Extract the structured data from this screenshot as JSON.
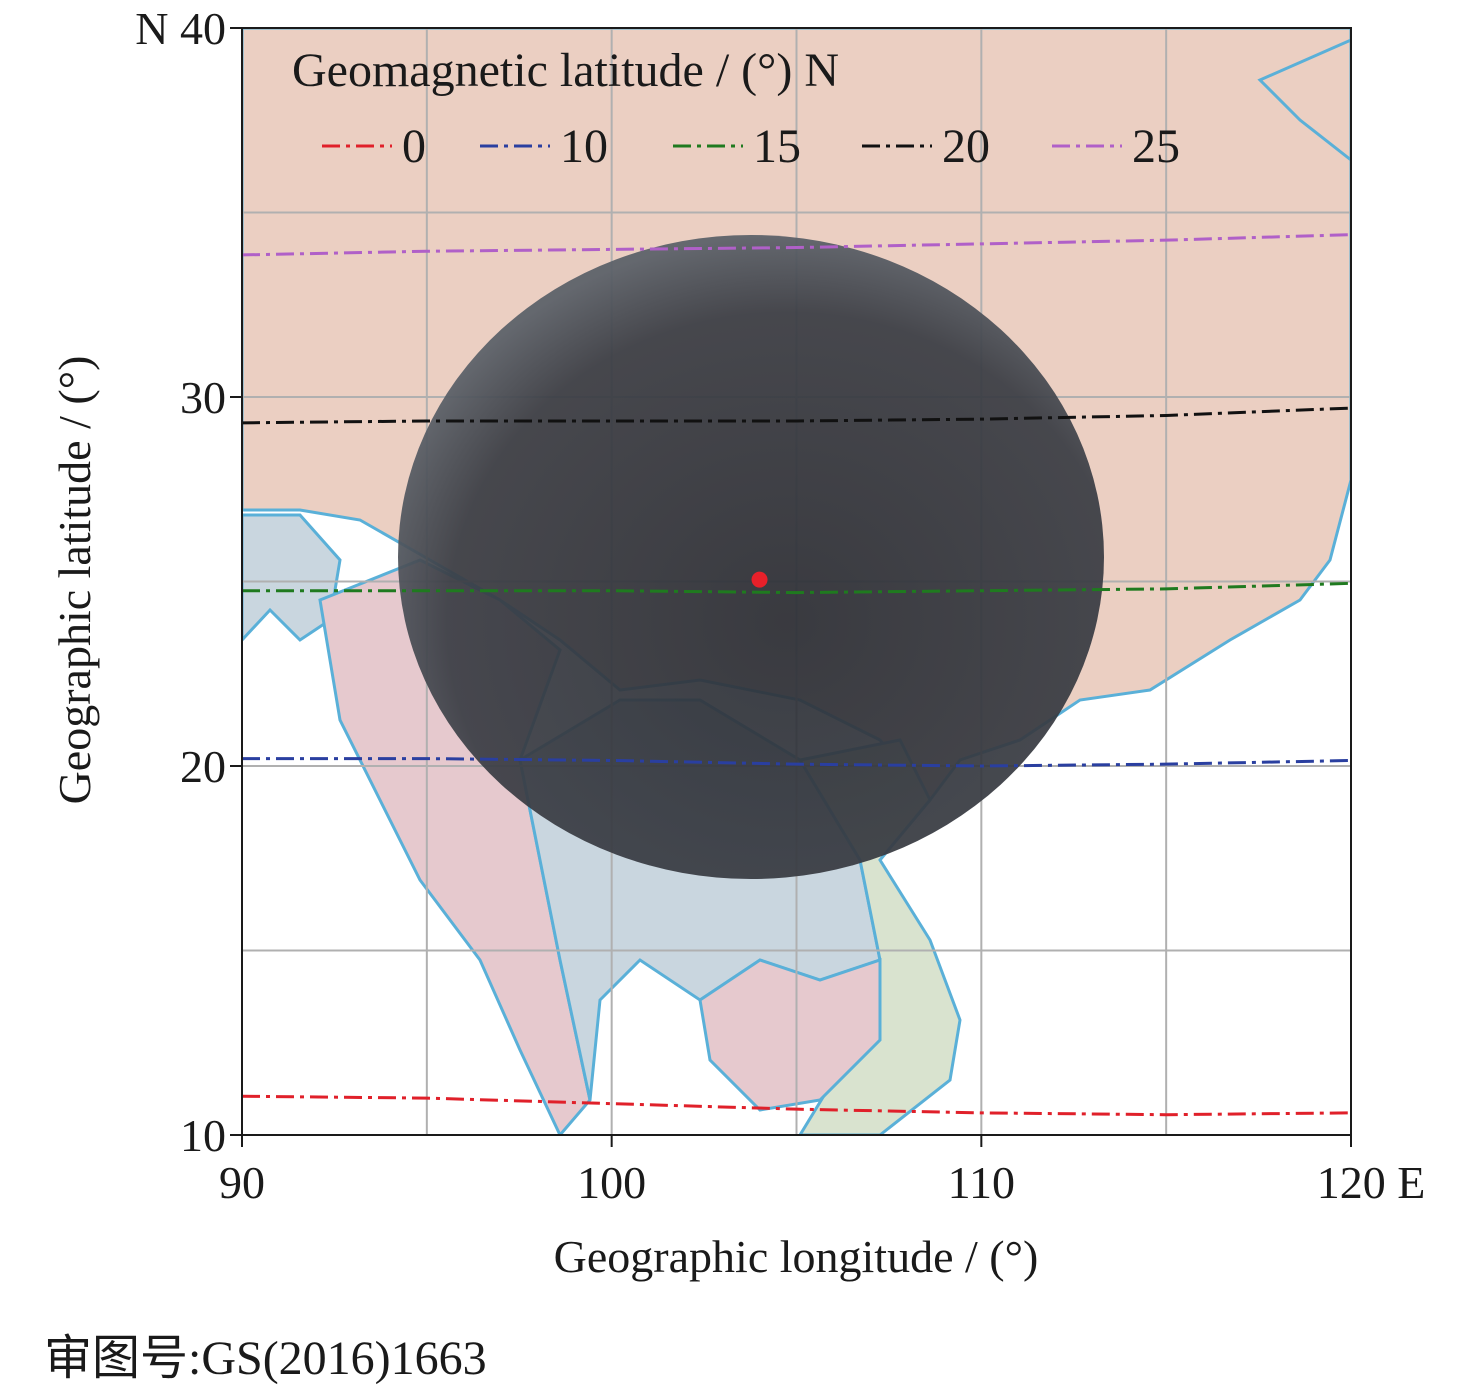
{
  "chart_data": {
    "type": "map",
    "xlabel": "Geographic longitude / (°)",
    "ylabel": "Geographic latitude / (°)",
    "xlim": [
      90,
      120
    ],
    "ylim": [
      10,
      40
    ],
    "x_ticks": [
      "90",
      "100",
      "110",
      "120 E"
    ],
    "x_tick_values": [
      90,
      100,
      110,
      120
    ],
    "y_ticks": [
      "10",
      "20",
      "30",
      "N 40"
    ],
    "y_tick_values": [
      10,
      20,
      30,
      40
    ],
    "grid_step_degrees": 5,
    "grid": true,
    "legend": {
      "title": "Geomagnetic latitude / (°) N",
      "placement": "top"
    },
    "series": [
      {
        "name": "0",
        "color": "#e0202a",
        "points": [
          [
            90,
            11.05
          ],
          [
            95,
            11.0
          ],
          [
            100,
            10.85
          ],
          [
            105,
            10.7
          ],
          [
            110,
            10.6
          ],
          [
            115,
            10.55
          ],
          [
            120,
            10.6
          ]
        ]
      },
      {
        "name": "10",
        "color": "#2a3fa0",
        "points": [
          [
            90,
            20.2
          ],
          [
            95,
            20.2
          ],
          [
            100,
            20.15
          ],
          [
            105,
            20.05
          ],
          [
            110,
            20.0
          ],
          [
            115,
            20.05
          ],
          [
            120,
            20.15
          ]
        ]
      },
      {
        "name": "15",
        "color": "#1f7a1f",
        "points": [
          [
            90,
            24.75
          ],
          [
            95,
            24.75
          ],
          [
            100,
            24.75
          ],
          [
            105,
            24.7
          ],
          [
            110,
            24.75
          ],
          [
            115,
            24.8
          ],
          [
            120,
            24.95
          ]
        ]
      },
      {
        "name": "20",
        "color": "#111111",
        "points": [
          [
            90,
            29.3
          ],
          [
            95,
            29.35
          ],
          [
            100,
            29.35
          ],
          [
            105,
            29.35
          ],
          [
            110,
            29.4
          ],
          [
            115,
            29.5
          ],
          [
            120,
            29.7
          ]
        ]
      },
      {
        "name": "25",
        "color": "#b060c8",
        "points": [
          [
            90,
            33.85
          ],
          [
            95,
            33.95
          ],
          [
            100,
            34.0
          ],
          [
            105,
            34.05
          ],
          [
            110,
            34.15
          ],
          [
            115,
            34.25
          ],
          [
            120,
            34.4
          ]
        ]
      }
    ],
    "station": {
      "lon": 104.0,
      "lat": 25.05,
      "color": "#e8202a"
    },
    "all_sky_image_extent": {
      "lon": [
        94.3,
        113.4
      ],
      "lat": [
        17.0,
        34.5
      ]
    }
  },
  "approval_number": "审图号:GS(2016)1663"
}
